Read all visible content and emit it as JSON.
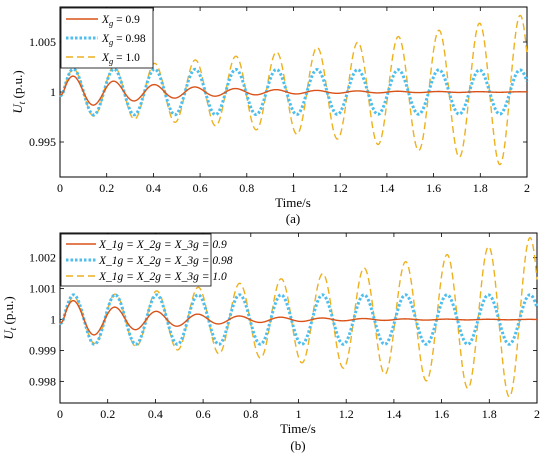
{
  "colors": {
    "s1": "#d95319",
    "s2": "#4dbeee",
    "s3": "#edb120"
  },
  "chart_data": [
    {
      "type": "line",
      "subplot_label": "(a)",
      "xlabel": "Time/s",
      "ylabel": "U_t (p.u.)",
      "xlim": [
        0,
        2
      ],
      "ylim": [
        0.9915,
        1.0085
      ],
      "xticks": [
        "0",
        "0.2",
        "0.4",
        "0.6",
        "0.8",
        "1",
        "1.2",
        "1.4",
        "1.6",
        "1.8",
        "2"
      ],
      "yticks": [
        {
          "value": 0.995,
          "label": "0.995"
        },
        {
          "value": 1.0,
          "label": "1"
        },
        {
          "value": 1.005,
          "label": "1.005"
        }
      ],
      "legend_position": "top-left",
      "grid": false,
      "series": [
        {
          "name": "X_g = 0.9",
          "legend_parts": [
            "X",
            "g",
            " = 0.9"
          ],
          "style": "solid",
          "amp0": 0.0018,
          "growth": -2.2,
          "final_amp": 0.0
        },
        {
          "name": "X_g = 0.98",
          "legend_parts": [
            "X",
            "g",
            " = 0.98"
          ],
          "style": "dotted",
          "amp0": 0.0023,
          "growth": 0.0,
          "final_amp": 0.0022
        },
        {
          "name": "X_g = 1.0",
          "legend_parts": [
            "X",
            "g",
            " = 1.0"
          ],
          "style": "dashed",
          "amp0": 0.0022,
          "growth": 0.6,
          "final_amp": 0.0078
        }
      ]
    },
    {
      "type": "line",
      "subplot_label": "(b)",
      "xlabel": "Time/s",
      "ylabel": "U_t (p.u.)",
      "xlim": [
        0,
        2
      ],
      "ylim": [
        0.9973,
        1.0028
      ],
      "xticks": [
        "0",
        "0.2",
        "0.4",
        "0.6",
        "0.8",
        "1",
        "1.2",
        "1.4",
        "1.6",
        "1.8",
        "2"
      ],
      "yticks": [
        {
          "value": 0.998,
          "label": "0.998"
        },
        {
          "value": 0.999,
          "label": "0.999"
        },
        {
          "value": 1.0,
          "label": "1"
        },
        {
          "value": 1.001,
          "label": "1.001"
        },
        {
          "value": 1.002,
          "label": "1.002"
        }
      ],
      "legend_position": "top-left",
      "grid": false,
      "series": [
        {
          "name": "X_1g = X_2g = X_3g = 0.9",
          "style": "solid",
          "amp0": 0.0007,
          "growth": -2.4,
          "final_amp": 0.0
        },
        {
          "name": "X_1g = X_2g = X_3g = 0.98",
          "style": "dotted",
          "amp0": 0.0008,
          "growth": 0.0,
          "final_amp": 0.0008
        },
        {
          "name": "X_1g = X_2g = X_3g = 1.0",
          "style": "dashed",
          "amp0": 0.0007,
          "growth": 0.65,
          "final_amp": 0.0027
        }
      ]
    }
  ]
}
